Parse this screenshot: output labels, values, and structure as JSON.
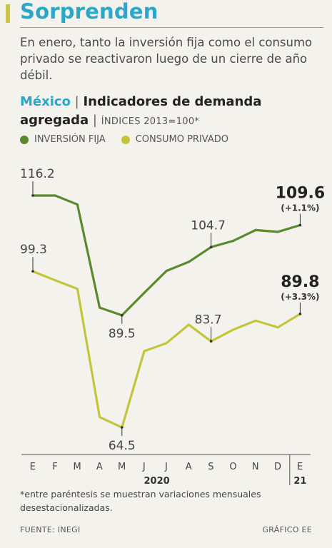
{
  "headline": "Sorprenden",
  "dek": "En enero, tanto la inversión fija como el consumo privado se reactivaron luego de un cierre de año débil.",
  "chart_heading": {
    "country": "México",
    "separator": "|",
    "title": "Indicadores de demanda agregada",
    "separator2": "|",
    "subtitle": "ÍNDICES 2013=100*"
  },
  "colors": {
    "accent": "#2aa7c9",
    "inversion": "#5a8a2e",
    "consumo": "#c3c63a",
    "axis": "#555555"
  },
  "footnote": "*entre paréntesis se muestran variaciones mensuales desestacionalizadas.",
  "source": "FUENTE: INEGI",
  "credit": "GRÁFICO EE",
  "chart_data": {
    "type": "line",
    "categories": [
      "E",
      "F",
      "M",
      "A",
      "M",
      "J",
      "J",
      "A",
      "S",
      "O",
      "N",
      "D",
      "E"
    ],
    "year_labels": [
      {
        "label": "2020",
        "category_index": 5
      },
      {
        "label": "21",
        "category_index": 12
      }
    ],
    "ylim": [
      60,
      118
    ],
    "grid": false,
    "legend": "top-left",
    "series": [
      {
        "name": "INVERSIÓN FIJA",
        "color": "#5a8a2e",
        "values": [
          116.2,
          116.2,
          114.2,
          91.2,
          89.5,
          94.5,
          99.4,
          101.4,
          104.7,
          106.1,
          108.5,
          108.1,
          109.6
        ],
        "annotations": [
          {
            "index": 0,
            "label": "116.2",
            "position": "above"
          },
          {
            "index": 4,
            "label": "89.5",
            "position": "below"
          },
          {
            "index": 8,
            "label": "104.7",
            "position": "above"
          },
          {
            "index": 12,
            "label": "109.6",
            "change": "(+1.1%)",
            "position": "above",
            "bold": true
          }
        ]
      },
      {
        "name": "CONSUMO PRIVADO",
        "color": "#c3c63a",
        "values": [
          99.3,
          97.3,
          95.4,
          66.8,
          64.5,
          81.5,
          83.3,
          87.4,
          83.7,
          86.3,
          88.3,
          86.8,
          89.8
        ],
        "annotations": [
          {
            "index": 0,
            "label": "99.3",
            "position": "above"
          },
          {
            "index": 4,
            "label": "64.5",
            "position": "below"
          },
          {
            "index": 8,
            "label": "83.7",
            "position": "above"
          },
          {
            "index": 12,
            "label": "89.8",
            "change": "(+3.3%)",
            "position": "above",
            "bold": true
          }
        ]
      }
    ]
  }
}
